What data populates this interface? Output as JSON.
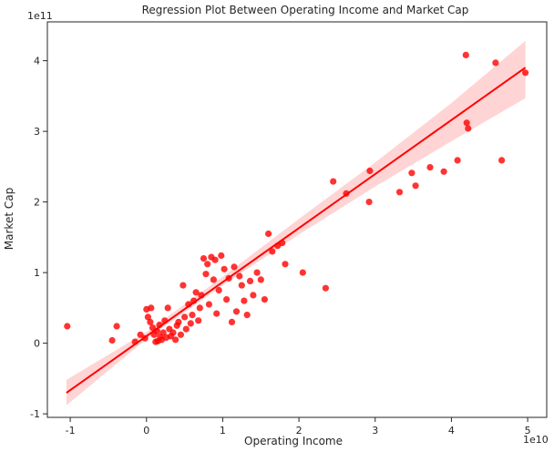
{
  "chart_data": {
    "type": "scatter",
    "title": "Regression Plot Between Operating Income and Market Cap",
    "xlabel": "Operating Income",
    "ylabel": "Market Cap",
    "x_offset_label": "1e10",
    "y_offset_label": "1e11",
    "xlim": [
      -1.3,
      5.25
    ],
    "ylim": [
      -1.05,
      4.55
    ],
    "x_ticks": [
      -1,
      0,
      1,
      2,
      3,
      4,
      5
    ],
    "y_ticks": [
      -1,
      0,
      1,
      2,
      3,
      4
    ],
    "x_tick_labels": [
      "-1",
      "0",
      "1",
      "2",
      "3",
      "4",
      "5"
    ],
    "y_tick_labels": [
      "-1",
      "0",
      "1",
      "2",
      "3",
      "4"
    ],
    "grid": false,
    "point_color": "#ff0000",
    "line_color": "#ff0000",
    "band_color": "#ffcccc",
    "regression": {
      "slope": 0.765,
      "intercept": 0.1,
      "x_range": [
        -1.05,
        4.97
      ]
    },
    "confidence_band": {
      "x": [
        -1.05,
        0.0,
        1.0,
        2.0,
        3.0,
        4.0,
        4.97
      ],
      "lower": [
        -0.88,
        0.06,
        0.82,
        1.54,
        2.22,
        2.86,
        3.47
      ],
      "upper": [
        -0.52,
        0.16,
        0.94,
        1.76,
        2.56,
        3.4,
        4.28
      ]
    },
    "points": [
      {
        "x": -1.04,
        "y": 0.24
      },
      {
        "x": -0.45,
        "y": 0.04
      },
      {
        "x": -0.39,
        "y": 0.24
      },
      {
        "x": -0.15,
        "y": 0.02
      },
      {
        "x": -0.08,
        "y": 0.12
      },
      {
        "x": -0.02,
        "y": 0.07
      },
      {
        "x": 0.0,
        "y": 0.48
      },
      {
        "x": 0.02,
        "y": 0.37
      },
      {
        "x": 0.05,
        "y": 0.3
      },
      {
        "x": 0.06,
        "y": 0.5
      },
      {
        "x": 0.08,
        "y": 0.22
      },
      {
        "x": 0.1,
        "y": 0.12
      },
      {
        "x": 0.12,
        "y": 0.02
      },
      {
        "x": 0.14,
        "y": 0.17
      },
      {
        "x": 0.15,
        "y": 0.03
      },
      {
        "x": 0.17,
        "y": 0.26
      },
      {
        "x": 0.18,
        "y": 0.09
      },
      {
        "x": 0.2,
        "y": 0.05
      },
      {
        "x": 0.22,
        "y": 0.15
      },
      {
        "x": 0.24,
        "y": 0.32
      },
      {
        "x": 0.26,
        "y": 0.08
      },
      {
        "x": 0.28,
        "y": 0.5
      },
      {
        "x": 0.3,
        "y": 0.2
      },
      {
        "x": 0.32,
        "y": 0.1
      },
      {
        "x": 0.35,
        "y": 0.15
      },
      {
        "x": 0.38,
        "y": 0.05
      },
      {
        "x": 0.4,
        "y": 0.25
      },
      {
        "x": 0.42,
        "y": 0.3
      },
      {
        "x": 0.45,
        "y": 0.12
      },
      {
        "x": 0.48,
        "y": 0.82
      },
      {
        "x": 0.5,
        "y": 0.37
      },
      {
        "x": 0.52,
        "y": 0.2
      },
      {
        "x": 0.55,
        "y": 0.55
      },
      {
        "x": 0.58,
        "y": 0.28
      },
      {
        "x": 0.6,
        "y": 0.4
      },
      {
        "x": 0.62,
        "y": 0.6
      },
      {
        "x": 0.65,
        "y": 0.72
      },
      {
        "x": 0.68,
        "y": 0.32
      },
      {
        "x": 0.7,
        "y": 0.5
      },
      {
        "x": 0.72,
        "y": 0.68
      },
      {
        "x": 0.75,
        "y": 1.2
      },
      {
        "x": 0.78,
        "y": 0.98
      },
      {
        "x": 0.8,
        "y": 1.12
      },
      {
        "x": 0.82,
        "y": 0.55
      },
      {
        "x": 0.85,
        "y": 1.22
      },
      {
        "x": 0.88,
        "y": 0.9
      },
      {
        "x": 0.9,
        "y": 1.18
      },
      {
        "x": 0.92,
        "y": 0.42
      },
      {
        "x": 0.95,
        "y": 0.75
      },
      {
        "x": 0.98,
        "y": 1.24
      },
      {
        "x": 1.02,
        "y": 1.05
      },
      {
        "x": 1.05,
        "y": 0.62
      },
      {
        "x": 1.08,
        "y": 0.92
      },
      {
        "x": 1.12,
        "y": 0.3
      },
      {
        "x": 1.15,
        "y": 1.08
      },
      {
        "x": 1.18,
        "y": 0.45
      },
      {
        "x": 1.22,
        "y": 0.95
      },
      {
        "x": 1.25,
        "y": 0.82
      },
      {
        "x": 1.28,
        "y": 0.6
      },
      {
        "x": 1.32,
        "y": 0.4
      },
      {
        "x": 1.36,
        "y": 0.88
      },
      {
        "x": 1.4,
        "y": 0.68
      },
      {
        "x": 1.45,
        "y": 1.0
      },
      {
        "x": 1.5,
        "y": 0.9
      },
      {
        "x": 1.55,
        "y": 0.62
      },
      {
        "x": 1.6,
        "y": 1.55
      },
      {
        "x": 1.65,
        "y": 1.3
      },
      {
        "x": 1.72,
        "y": 1.38
      },
      {
        "x": 1.78,
        "y": 1.42
      },
      {
        "x": 1.82,
        "y": 1.12
      },
      {
        "x": 2.05,
        "y": 1.0
      },
      {
        "x": 2.35,
        "y": 0.78
      },
      {
        "x": 2.45,
        "y": 2.29
      },
      {
        "x": 2.62,
        "y": 2.12
      },
      {
        "x": 2.93,
        "y": 2.44
      },
      {
        "x": 2.92,
        "y": 2.0
      },
      {
        "x": 3.32,
        "y": 2.14
      },
      {
        "x": 3.48,
        "y": 2.41
      },
      {
        "x": 3.53,
        "y": 2.23
      },
      {
        "x": 3.72,
        "y": 2.49
      },
      {
        "x": 3.9,
        "y": 2.43
      },
      {
        "x": 4.08,
        "y": 2.59
      },
      {
        "x": 4.19,
        "y": 4.08
      },
      {
        "x": 4.2,
        "y": 3.12
      },
      {
        "x": 4.22,
        "y": 3.04
      },
      {
        "x": 4.58,
        "y": 3.97
      },
      {
        "x": 4.66,
        "y": 2.59
      },
      {
        "x": 4.97,
        "y": 3.83
      }
    ]
  }
}
